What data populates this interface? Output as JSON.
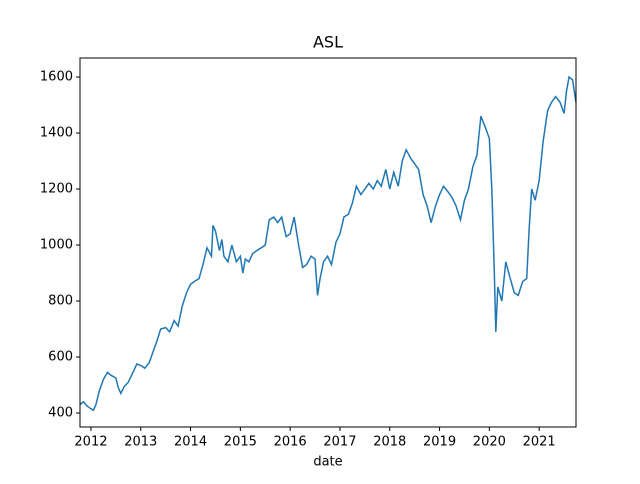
{
  "chart_data": {
    "type": "line",
    "title": "ASL",
    "x_label": "date",
    "x": [
      2011.78,
      2011.85,
      2011.92,
      2012.0,
      2012.05,
      2012.1,
      2012.17,
      2012.25,
      2012.33,
      2012.4,
      2012.5,
      2012.55,
      2012.6,
      2012.67,
      2012.75,
      2012.83,
      2012.92,
      2013.0,
      2013.08,
      2013.17,
      2013.25,
      2013.33,
      2013.4,
      2013.5,
      2013.58,
      2013.67,
      2013.75,
      2013.83,
      2013.92,
      2014.0,
      2014.08,
      2014.17,
      2014.25,
      2014.33,
      2014.42,
      2014.45,
      2014.5,
      2014.58,
      2014.63,
      2014.67,
      2014.75,
      2014.83,
      2014.92,
      2015.0,
      2015.05,
      2015.1,
      2015.17,
      2015.25,
      2015.33,
      2015.42,
      2015.5,
      2015.58,
      2015.67,
      2015.75,
      2015.83,
      2015.92,
      2016.0,
      2016.08,
      2016.17,
      2016.25,
      2016.33,
      2016.42,
      2016.5,
      2016.55,
      2016.6,
      2016.67,
      2016.75,
      2016.83,
      2016.92,
      2017.0,
      2017.08,
      2017.17,
      2017.25,
      2017.33,
      2017.42,
      2017.5,
      2017.58,
      2017.67,
      2017.75,
      2017.83,
      2017.92,
      2018.0,
      2018.08,
      2018.17,
      2018.25,
      2018.33,
      2018.42,
      2018.5,
      2018.58,
      2018.67,
      2018.75,
      2018.83,
      2018.92,
      2019.0,
      2019.08,
      2019.17,
      2019.25,
      2019.33,
      2019.42,
      2019.5,
      2019.58,
      2019.67,
      2019.75,
      2019.83,
      2019.92,
      2020.0,
      2020.05,
      2020.1,
      2020.13,
      2020.17,
      2020.25,
      2020.33,
      2020.42,
      2020.5,
      2020.58,
      2020.67,
      2020.75,
      2020.8,
      2020.85,
      2020.92,
      2021.0,
      2021.08,
      2021.17,
      2021.25,
      2021.33,
      2021.42,
      2021.5,
      2021.55,
      2021.6,
      2021.67,
      2021.74
    ],
    "series": [
      {
        "name": "ASL",
        "color": "#1f77b4",
        "values": [
          430,
          440,
          425,
          415,
          410,
          430,
          480,
          520,
          545,
          535,
          525,
          490,
          470,
          495,
          510,
          540,
          575,
          570,
          560,
          580,
          620,
          660,
          700,
          705,
          690,
          730,
          710,
          780,
          830,
          860,
          870,
          880,
          930,
          990,
          960,
          1070,
          1050,
          980,
          1020,
          960,
          940,
          1000,
          940,
          960,
          900,
          950,
          940,
          970,
          980,
          990,
          1000,
          1090,
          1100,
          1080,
          1100,
          1030,
          1040,
          1100,
          1000,
          920,
          930,
          960,
          950,
          820,
          880,
          940,
          960,
          930,
          1010,
          1040,
          1100,
          1110,
          1150,
          1210,
          1180,
          1200,
          1220,
          1200,
          1230,
          1210,
          1270,
          1200,
          1260,
          1210,
          1300,
          1340,
          1310,
          1290,
          1270,
          1180,
          1140,
          1080,
          1140,
          1180,
          1210,
          1190,
          1170,
          1140,
          1090,
          1160,
          1200,
          1280,
          1320,
          1460,
          1420,
          1380,
          1200,
          900,
          690,
          850,
          800,
          940,
          880,
          830,
          820,
          870,
          880,
          1060,
          1200,
          1160,
          1230,
          1370,
          1480,
          1510,
          1530,
          1510,
          1470,
          1550,
          1600,
          1590,
          1510
        ]
      }
    ],
    "xlim": [
      2011.78,
      2021.74
    ],
    "xticks": [
      2012,
      2013,
      2014,
      2015,
      2016,
      2017,
      2018,
      2019,
      2020,
      2021
    ],
    "ylim": [
      350,
      1668
    ],
    "yticks": [
      400,
      600,
      800,
      1000,
      1200,
      1400,
      1600
    ]
  }
}
